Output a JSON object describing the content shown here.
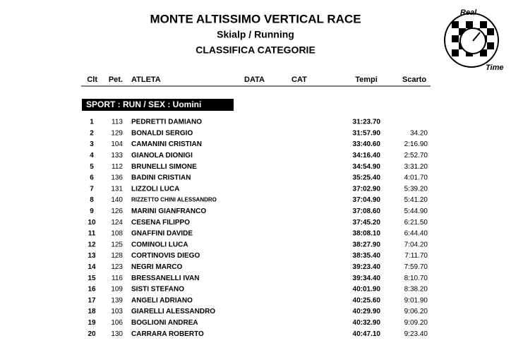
{
  "header": {
    "title": "MONTE ALTISSIMO VERTICAL RACE",
    "subtitle": "Skialp / Running",
    "heading": "CLASSIFICA CATEGORIE"
  },
  "logo": {
    "top": "Real",
    "bottom": "Time"
  },
  "table": {
    "columns": [
      "Clt",
      "Pet.",
      "ATLETA",
      "DATA",
      "CAT",
      "Tempi",
      "Scarto"
    ],
    "section": "SPORT : RUN / SEX : Uomini",
    "rows": [
      {
        "clt": "1",
        "pet": "113",
        "atleta": "PEDRETTI DAMIANO",
        "tempi": "31:23.70"
      },
      {
        "clt": "2",
        "pet": "129",
        "atleta": "BONALDI SERGIO",
        "tempi": "31:57.90",
        "scarto": "34.20"
      },
      {
        "clt": "3",
        "pet": "104",
        "atleta": "CAMANINI CRISTIAN",
        "tempi": "33:40.60",
        "scarto": "2:16.90"
      },
      {
        "clt": "4",
        "pet": "133",
        "atleta": "GIANOLA DIONIGI",
        "tempi": "34:16.40",
        "scarto": "2:52.70"
      },
      {
        "clt": "5",
        "pet": "112",
        "atleta": "BRUNELLI SIMONE",
        "tempi": "34:54.90",
        "scarto": "3:31.20"
      },
      {
        "clt": "6",
        "pet": "136",
        "atleta": "BADINI CRISTIAN",
        "tempi": "35:25.40",
        "scarto": "4:01.70"
      },
      {
        "clt": "7",
        "pet": "131",
        "atleta": "LIZZOLI LUCA",
        "tempi": "37:02.90",
        "scarto": "5:39.20"
      },
      {
        "clt": "8",
        "pet": "140",
        "atleta": "RIZZETTO CHINI ALESSANDRO",
        "tempi": "37:04.90",
        "scarto": "5:41.20"
      },
      {
        "clt": "9",
        "pet": "126",
        "atleta": "MARINI GIANFRANCO",
        "tempi": "37:08.60",
        "scarto": "5:44.90"
      },
      {
        "clt": "10",
        "pet": "124",
        "atleta": "CESENA FILIPPO",
        "tempi": "37:45.20",
        "scarto": "6:21.50"
      },
      {
        "clt": "11",
        "pet": "108",
        "atleta": "GNAFFINI DAVIDE",
        "tempi": "38:08.10",
        "scarto": "6:44.40"
      },
      {
        "clt": "12",
        "pet": "125",
        "atleta": "COMINOLI LUCA",
        "tempi": "38:27.90",
        "scarto": "7:04.20"
      },
      {
        "clt": "13",
        "pet": "128",
        "atleta": "CORTINOVIS DIEGO",
        "tempi": "38:35.40",
        "scarto": "7:11.70"
      },
      {
        "clt": "14",
        "pet": "123",
        "atleta": "NEGRI MARCO",
        "tempi": "39:23.40",
        "scarto": "7:59.70"
      },
      {
        "clt": "15",
        "pet": "116",
        "atleta": "BRESSANELLI IVAN",
        "tempi": "39:34.40",
        "scarto": "8:10.70"
      },
      {
        "clt": "16",
        "pet": "109",
        "atleta": "SISTI STEFANO",
        "tempi": "40:01.90",
        "scarto": "8:38.20"
      },
      {
        "clt": "17",
        "pet": "139",
        "atleta": "ANGELI ADRIANO",
        "tempi": "40:25.60",
        "scarto": "9:01.90"
      },
      {
        "clt": "18",
        "pet": "103",
        "atleta": "GIARELLI ALESSANDRO",
        "tempi": "40:29.90",
        "scarto": "9:06.20"
      },
      {
        "clt": "19",
        "pet": "106",
        "atleta": "BOGLIONI ANDREA",
        "tempi": "40:32.90",
        "scarto": "9:09.20"
      },
      {
        "clt": "20",
        "pet": "130",
        "atleta": "CARRARA ROBERTO",
        "tempi": "40:47.10",
        "scarto": "9:23.40"
      }
    ]
  }
}
